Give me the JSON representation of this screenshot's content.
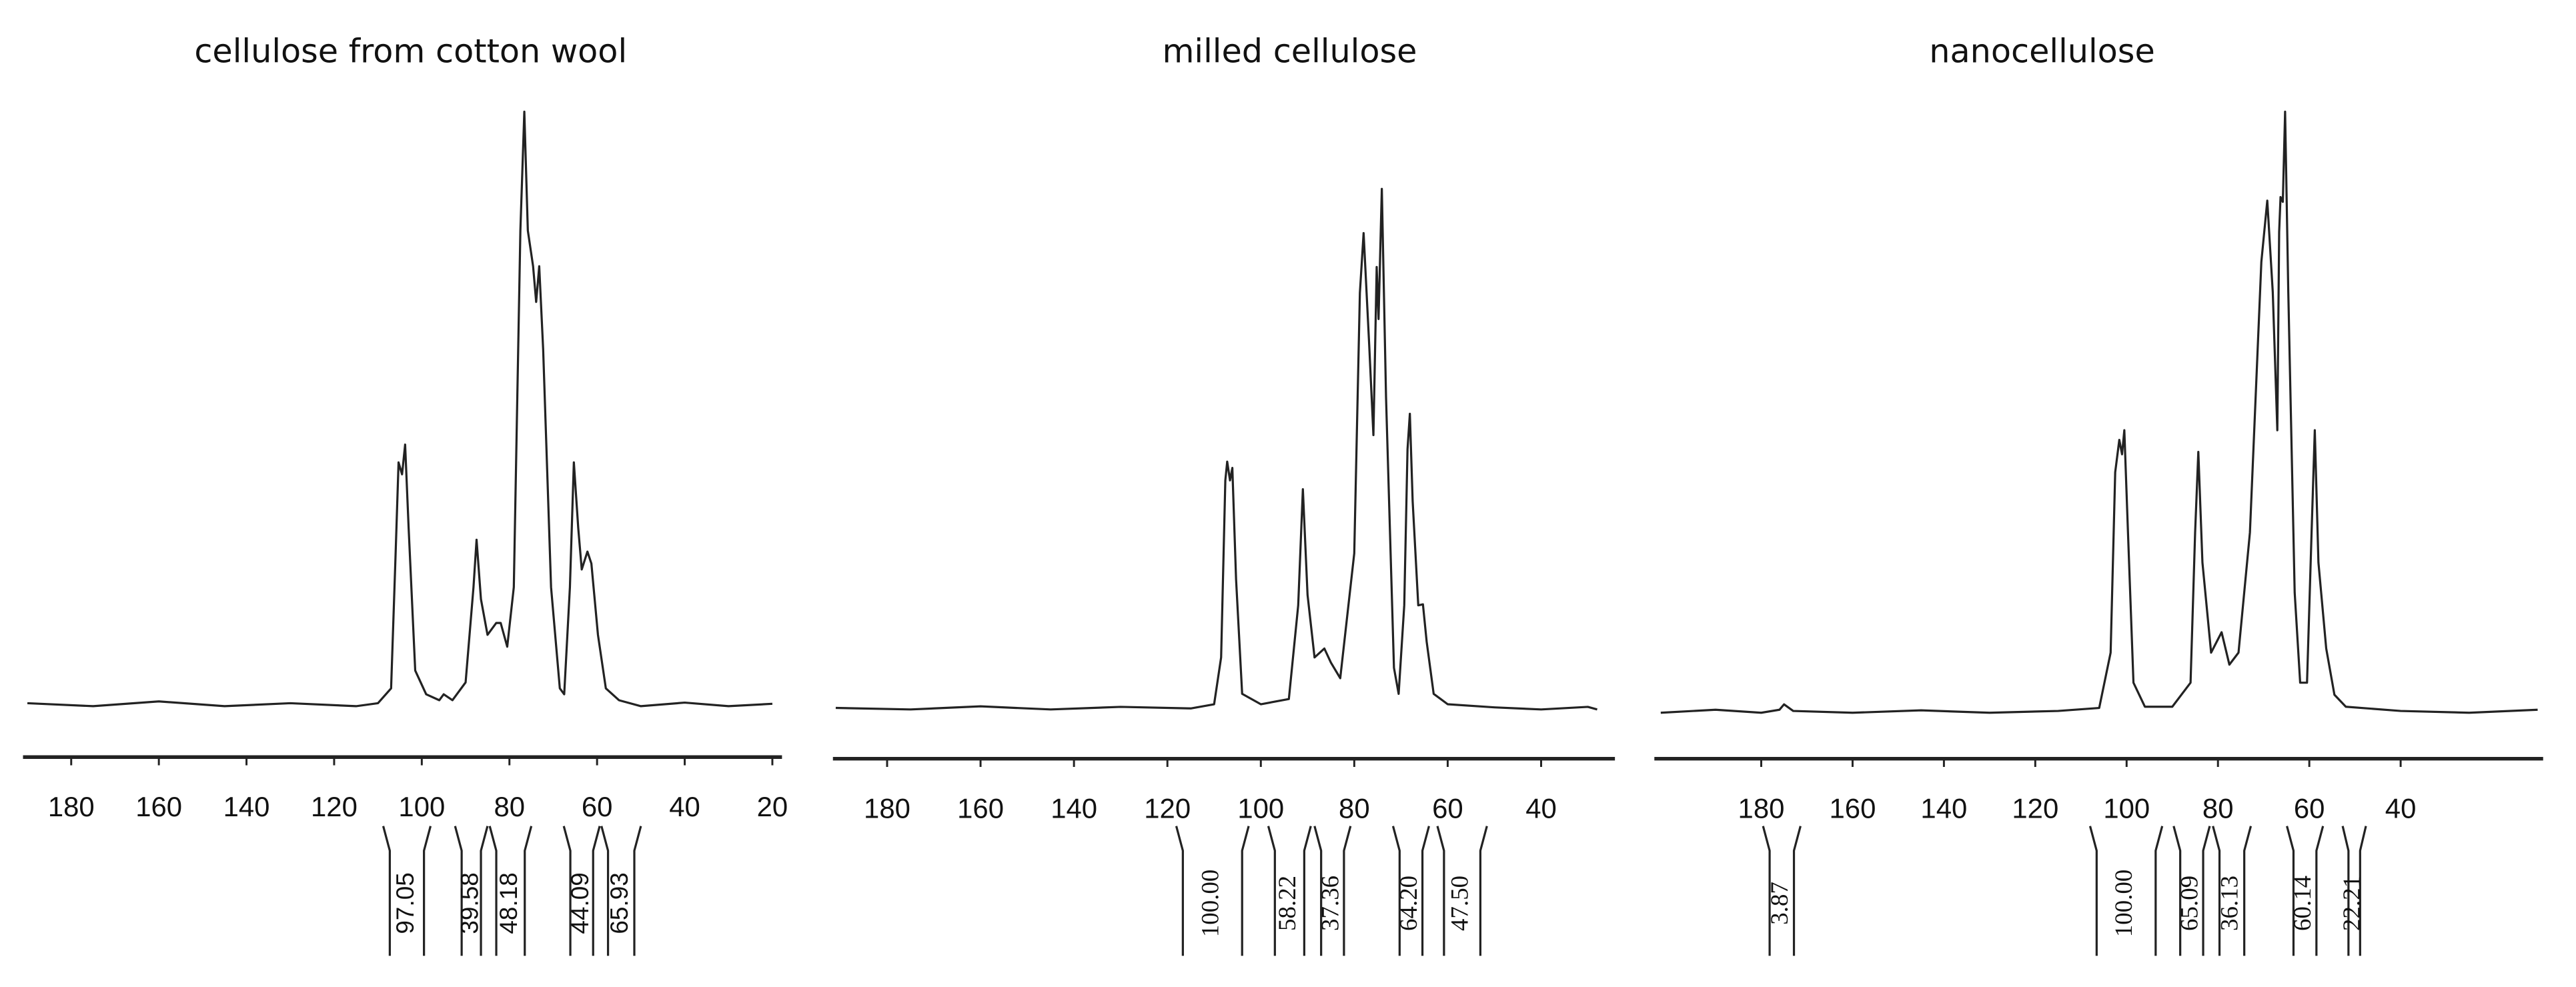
{
  "chart_data": [
    {
      "type": "line",
      "title": "cellulose from cotton wool",
      "color": "#222222",
      "x": [
        190,
        175,
        160,
        145,
        130,
        115,
        110,
        107,
        106,
        105.3,
        104.5,
        103.8,
        103,
        101.5,
        99,
        96,
        95,
        93,
        90,
        88.2,
        87.5,
        86.5,
        85,
        83,
        82,
        80.5,
        79,
        77.5,
        76.6,
        75.8,
        74.6,
        73.9,
        73.2,
        72.3,
        70.5,
        68.5,
        67.5,
        66.2,
        65.3,
        64.3,
        63.5,
        62.2,
        61.3,
        59.8,
        58,
        55,
        50,
        40,
        30,
        20
      ],
      "values": [
        0.5,
        0,
        0.8,
        0,
        0.5,
        0,
        0.5,
        3,
        25,
        41,
        39,
        44,
        30,
        6,
        2,
        1,
        2,
        1,
        4,
        20,
        28,
        18,
        12,
        14,
        14,
        10,
        20,
        80,
        100,
        80,
        74,
        68,
        74,
        60,
        20,
        3,
        2,
        20,
        41,
        30,
        23,
        26,
        24,
        12,
        3,
        1,
        0,
        0.6,
        0,
        0.4
      ],
      "xlim": [
        191,
        17.8
      ],
      "xticks": [
        180,
        160,
        140,
        120,
        100,
        80,
        60,
        40,
        20
      ],
      "integrals": {
        "values": [
          97.05,
          39.58,
          48.18,
          44.09,
          65.93
        ],
        "bounds": [
          [
            108.8,
            98
          ],
          [
            92.4,
            85
          ],
          [
            84.5,
            75
          ],
          [
            67.6,
            59.4
          ],
          [
            59,
            50
          ]
        ]
      }
    },
    {
      "type": "line",
      "title": "milled cellulose",
      "color": "#222222",
      "x": [
        191,
        175,
        160,
        145,
        130,
        115,
        110,
        108.5,
        107.6,
        107.2,
        106.6,
        106.1,
        105.3,
        104,
        100,
        94,
        92,
        91,
        90,
        88.5,
        86.4,
        85,
        83,
        80,
        78.8,
        78,
        76.8,
        75.9,
        75.2,
        74.8,
        74.1,
        73.2,
        71.5,
        70.5,
        69.3,
        68.6,
        68.1,
        67.5,
        66.3,
        65.3,
        64.5,
        63,
        60,
        50,
        40,
        30,
        28
      ],
      "values": [
        0.3,
        0,
        0.6,
        0,
        0.5,
        0.2,
        1,
        10,
        44,
        47.6,
        44,
        46.4,
        25,
        3,
        1,
        2,
        20,
        42.3,
        22,
        10,
        11.7,
        9,
        6,
        30,
        80,
        91.5,
        70,
        52.7,
        85,
        75,
        100,
        60,
        8,
        3,
        20,
        50,
        56.8,
        40,
        20,
        20.2,
        13,
        3,
        1,
        0.4,
        0,
        0.5,
        0
      ],
      "xlim": [
        191.6,
        24.2
      ],
      "xticks": [
        180,
        160,
        140,
        120,
        100,
        80,
        60,
        40
      ],
      "integrals": {
        "values": [
          100,
          58.22,
          37.36,
          64.2,
          47.5
        ],
        "value_labels": [
          "100.00",
          "58.22",
          "37.36",
          "64.20",
          "47.50"
        ],
        "bounds": [
          [
            118.1,
            102.6
          ],
          [
            98.4,
            89.3
          ],
          [
            88.5,
            80.8
          ],
          [
            71.7,
            64
          ],
          [
            62.2,
            51.6
          ]
        ]
      }
    },
    {
      "type": "line",
      "title": "nanocellulose",
      "color": "#222222",
      "x": [
        202,
        190,
        180,
        176,
        175,
        173,
        160,
        145,
        130,
        115,
        106,
        103.5,
        102.5,
        101.6,
        101,
        100.5,
        99.7,
        98.5,
        96,
        90,
        86,
        85,
        84.3,
        83.4,
        81.5,
        79.2,
        77.5,
        75.5,
        73,
        70.5,
        69.2,
        68,
        67,
        66.6,
        66.3,
        65.8,
        65.3,
        64.6,
        63.2,
        62,
        60.5,
        59.5,
        58.8,
        58,
        56.3,
        54.5,
        52,
        40,
        25,
        10
      ],
      "values": [
        0,
        0.5,
        0,
        0.5,
        1.4,
        0.3,
        0,
        0.4,
        0,
        0.3,
        0.8,
        10,
        40,
        45.4,
        43,
        47,
        30,
        5,
        1,
        1,
        5,
        30,
        43.4,
        25,
        10,
        13.4,
        8,
        10,
        30,
        75,
        85.2,
        70,
        47,
        80,
        85.8,
        85,
        100,
        70,
        20,
        5,
        5,
        30,
        47,
        25,
        10.7,
        3,
        1,
        0.3,
        0,
        0.5
      ],
      "xlim": [
        203.4,
        8.8
      ],
      "xticks": [
        180,
        160,
        140,
        120,
        100,
        80,
        60,
        40
      ],
      "integrals": {
        "values": [
          3.87,
          100,
          65.09,
          36.13,
          60.14,
          22.21
        ],
        "value_labels": [
          "3.87",
          "100.00",
          "65.09",
          "36.13",
          "60.14",
          "22.21"
        ],
        "bounds": [
          [
            179.6,
            171.4
          ],
          [
            108,
            92.2
          ],
          [
            89.7,
            81.8
          ],
          [
            81.1,
            72.8
          ],
          [
            64.9,
            57
          ],
          [
            52.7,
            47.6
          ]
        ]
      }
    }
  ]
}
